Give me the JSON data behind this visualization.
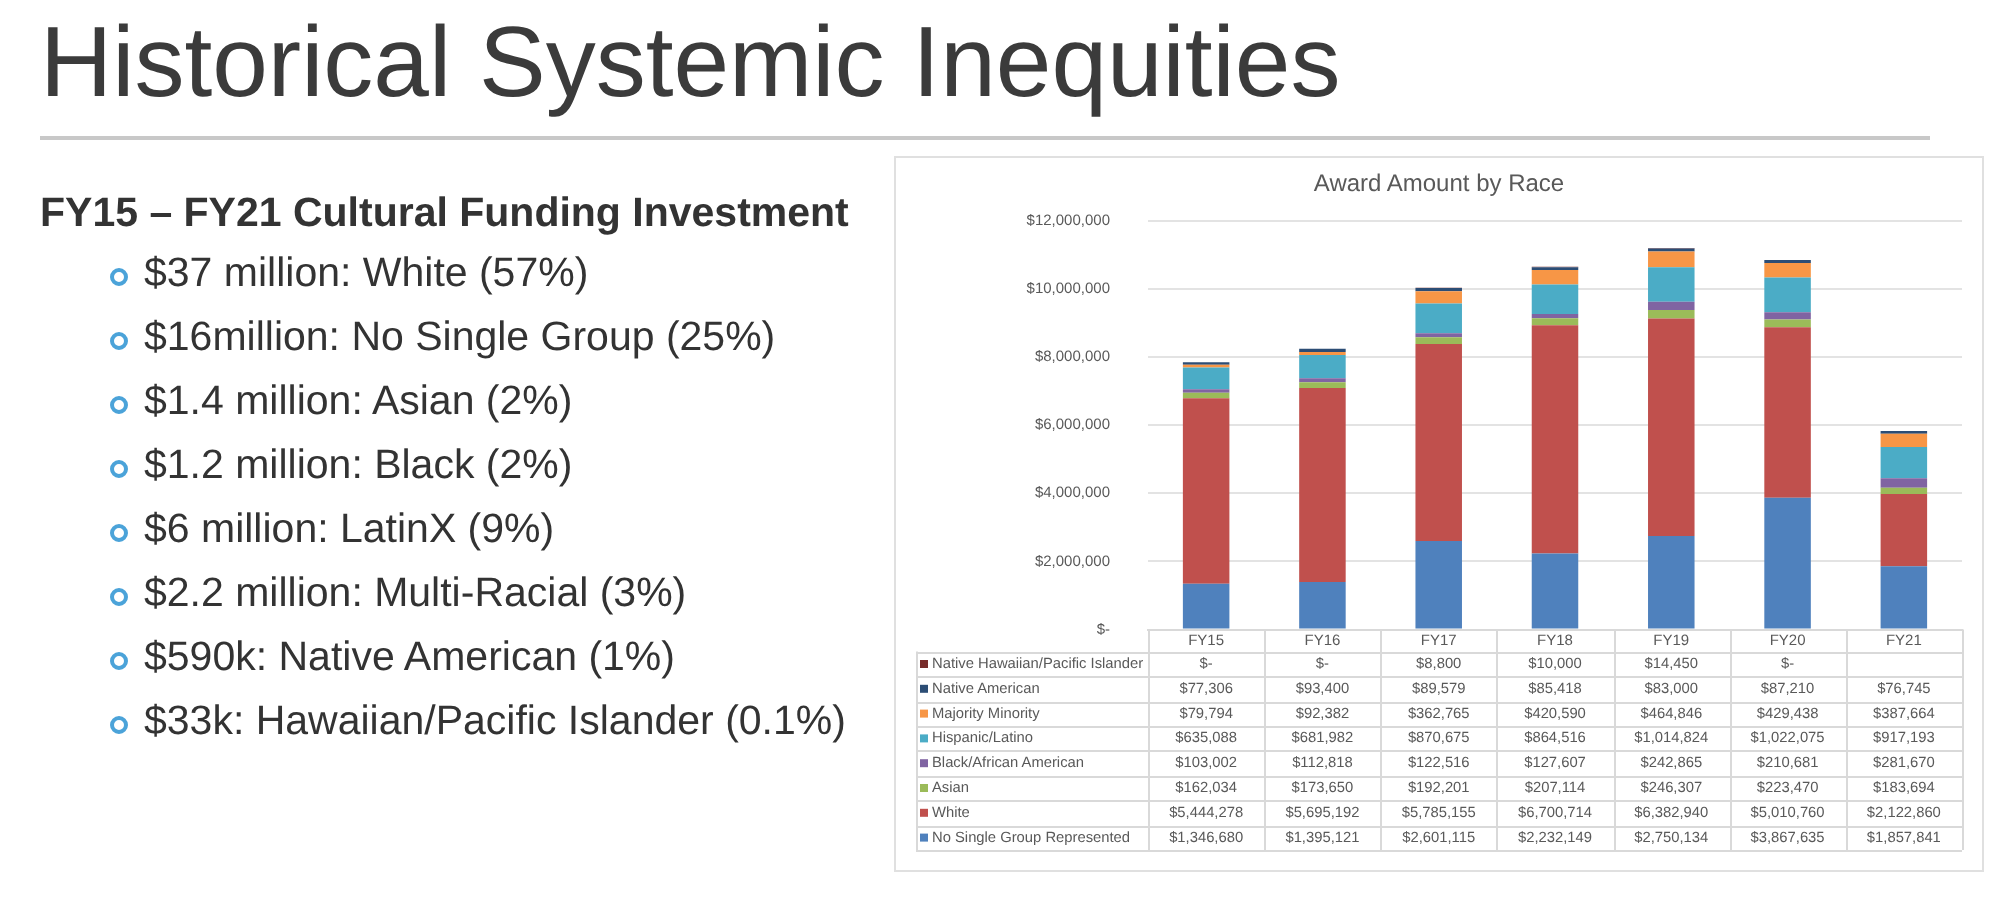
{
  "chart_data": [
    {
      "type": "other",
      "title": "Historical Systemic Inequities",
      "subtitle": "FY15 – FY21 Cultural Funding Investment",
      "annotations": [
        "$37 million: White (57%)",
        "$16million: No Single Group (25%)",
        "$1.4 million: Asian (2%)",
        "$1.2 million: Black (2%)",
        "$6 million: LatinX (9%)",
        "$2.2 million: Multi-Racial (3%)",
        "$590k: Native American (1%)",
        "$33k: Hawaiian/Pacific Islander (0.1%)"
      ]
    },
    {
      "type": "bar",
      "title": "Award Amount by Race",
      "categories": [
        "FY15",
        "FY16",
        "FY17",
        "FY18",
        "FY19",
        "FY20",
        "FY21"
      ],
      "stacked": true,
      "ylim": [
        0,
        12000000
      ],
      "yticks": [
        {
          "value": 0,
          "label": "$-"
        },
        {
          "value": 2000000,
          "label": "$2,000,000"
        },
        {
          "value": 4000000,
          "label": "$4,000,000"
        },
        {
          "value": 6000000,
          "label": "$6,000,000"
        },
        {
          "value": 8000000,
          "label": "$8,000,000"
        },
        {
          "value": 10000000,
          "label": "$10,000,000"
        },
        {
          "value": 12000000,
          "label": "$12,000,000"
        }
      ],
      "grid": "y",
      "legend": "bottom",
      "series": [
        {
          "name": "No Single Group Represented",
          "color": "#4f81bd",
          "values": [
            1346680,
            1395121,
            2601115,
            2232149,
            2750134,
            3867635,
            1857841
          ],
          "value_labels": [
            "$1,346,680",
            "$1,395,121",
            "$2,601,115",
            "$2,232,149",
            "$2,750,134",
            "$3,867,635",
            "$1,857,841"
          ]
        },
        {
          "name": "White",
          "color": "#c0504d",
          "values": [
            5444278,
            5695192,
            5785155,
            6700714,
            6382940,
            5010760,
            2122860
          ],
          "value_labels": [
            "$5,444,278",
            "$5,695,192",
            "$5,785,155",
            "$6,700,714",
            "$6,382,940",
            "$5,010,760",
            "$2,122,860"
          ]
        },
        {
          "name": "Asian",
          "color": "#9bbb59",
          "values": [
            162034,
            173650,
            192201,
            207114,
            246307,
            223470,
            183694
          ],
          "value_labels": [
            "$162,034",
            "$173,650",
            "$192,201",
            "$207,114",
            "$246,307",
            "$223,470",
            "$183,694"
          ]
        },
        {
          "name": "Black/African American",
          "color": "#8064a2",
          "values": [
            103002,
            112818,
            122516,
            127607,
            242865,
            210681,
            281670
          ],
          "value_labels": [
            "$103,002",
            "$112,818",
            "$122,516",
            "$127,607",
            "$242,865",
            "$210,681",
            "$281,670"
          ]
        },
        {
          "name": "Hispanic/Latino",
          "color": "#4bacc6",
          "values": [
            635088,
            681982,
            870675,
            864516,
            1014824,
            1022075,
            917193
          ],
          "value_labels": [
            "$635,088",
            "$681,982",
            "$870,675",
            "$864,516",
            "$1,014,824",
            "$1,022,075",
            "$917,193"
          ]
        },
        {
          "name": "Majority Minority",
          "color": "#f79646",
          "values": [
            79794,
            92382,
            362765,
            420590,
            464846,
            429438,
            387664
          ],
          "value_labels": [
            "$79,794",
            "$92,382",
            "$362,765",
            "$420,590",
            "$464,846",
            "$429,438",
            "$387,664"
          ]
        },
        {
          "name": "Native American",
          "color": "#2c4d75",
          "values": [
            77306,
            93400,
            89579,
            85418,
            83000,
            87210,
            76745
          ],
          "value_labels": [
            "$77,306",
            "$93,400",
            "$89,579",
            "$85,418",
            "$83,000",
            "$87,210",
            "$76,745"
          ]
        },
        {
          "name": "Native Hawaiian/Pacific Islander",
          "color": "#772c2a",
          "values": [
            0,
            0,
            8800,
            10000,
            14450,
            0,
            null
          ],
          "value_labels": [
            "$-",
            "$-",
            "$8,800",
            "$10,000",
            "$14,450",
            "$-",
            null
          ]
        }
      ]
    }
  ]
}
